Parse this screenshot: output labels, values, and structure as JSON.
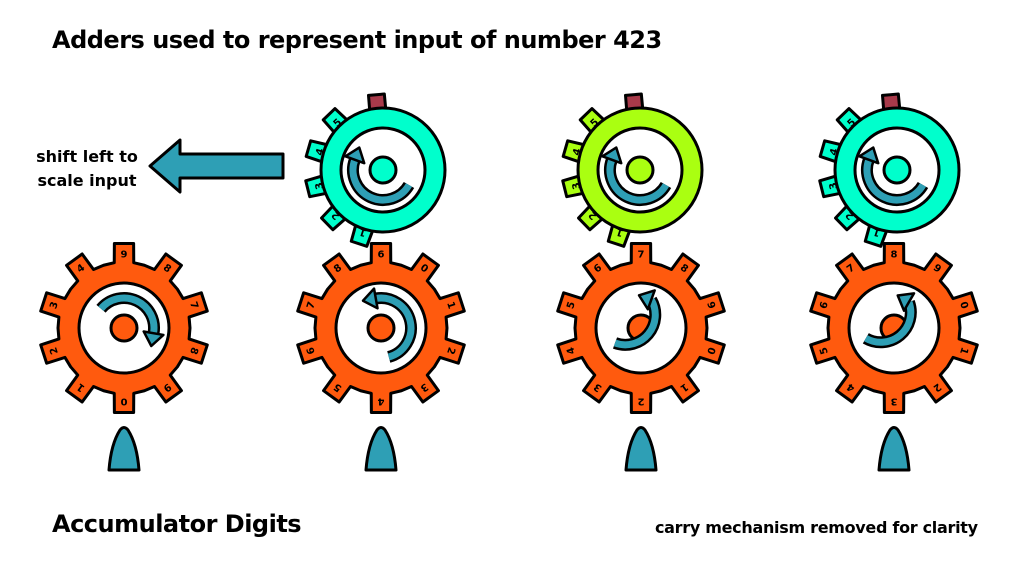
{
  "title": "Adders used to represent input of number 423",
  "shift_label": [
    "shift left to",
    "scale input"
  ],
  "accumulator_label": "Accumulator Digits",
  "carry_note": "carry mechanism removed for clarity",
  "colors": {
    "accumulator": "#ff5a0e",
    "adder": "#00ffcc",
    "adder_active": "#aaff11",
    "arrow": "#2e9fb5",
    "stop_tooth": "#a83a4a",
    "outline": "#000000"
  },
  "accumulators": [
    {
      "labels": [
        "9",
        "8",
        "7",
        "8",
        "9",
        "0",
        "1",
        "2",
        "3",
        "4"
      ],
      "rotation": "clockwise"
    },
    {
      "labels": [
        "6",
        "0",
        "1",
        "2",
        "3",
        "4",
        "5",
        "6",
        "7",
        "8"
      ],
      "rotation": "clockwise"
    },
    {
      "labels": [
        "7",
        "8",
        "9",
        "0",
        "1",
        "2",
        "3",
        "4",
        "5",
        "6"
      ],
      "rotation": "counterclockwise"
    },
    {
      "labels": [
        "8",
        "9",
        "0",
        "1",
        "2",
        "3",
        "4",
        "5",
        "6",
        "7"
      ],
      "rotation": "counterclockwise"
    }
  ],
  "adders": [
    {
      "teeth": [
        "1",
        "2",
        "3",
        "4",
        "5"
      ],
      "active": false
    },
    {
      "teeth": [
        "1",
        "2",
        "3",
        "4",
        "5"
      ],
      "active": true
    },
    {
      "teeth": [
        "1",
        "2",
        "3",
        "4",
        "5"
      ],
      "active": false
    }
  ]
}
